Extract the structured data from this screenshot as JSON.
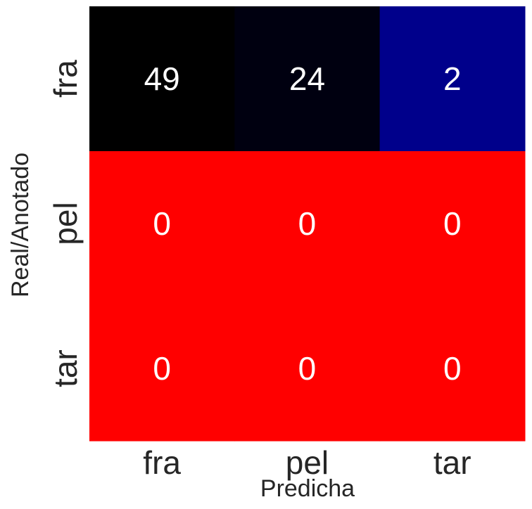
{
  "chart_data": {
    "type": "heatmap",
    "title": "",
    "xlabel": "Predicha",
    "ylabel": "Real/Anotado",
    "x_categories": [
      "fra",
      "pel",
      "tar"
    ],
    "y_categories": [
      "fra",
      "pel",
      "tar"
    ],
    "values": [
      [
        49,
        24,
        2
      ],
      [
        0,
        0,
        0
      ],
      [
        0,
        0,
        0
      ]
    ],
    "colorbar": false,
    "colors": {
      "zero": "#ff0000",
      "low": "#00008b",
      "mid": "#000010",
      "high": "#000000"
    },
    "annotation_color": "#ffffff",
    "tick_color": "#262626"
  }
}
